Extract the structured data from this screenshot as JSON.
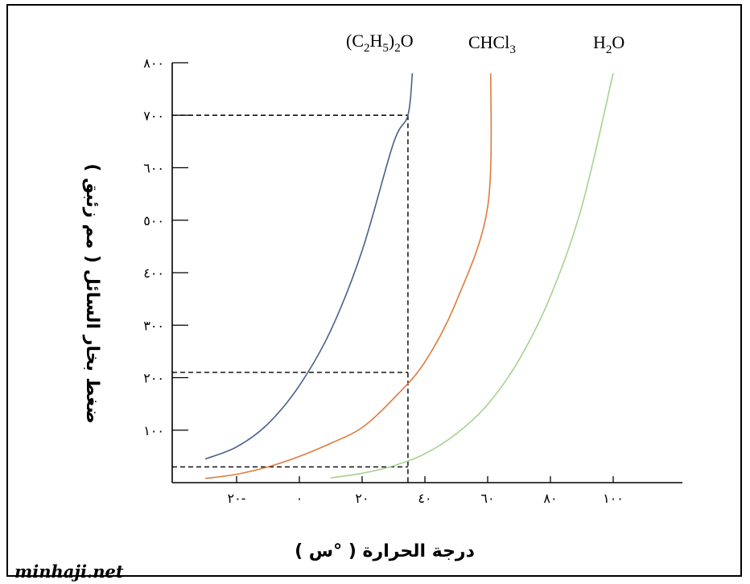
{
  "chart_data": {
    "type": "line",
    "title": "",
    "xlabel": "درجة الحرارة ( °س )",
    "ylabel": "ضغط بخار السائل ( مم زئبق )",
    "xlim": [
      -40,
      120
    ],
    "ylim": [
      0,
      800
    ],
    "x_ticks": [
      {
        "value": -20,
        "label": "٢٠-"
      },
      {
        "value": 0,
        "label": "٠"
      },
      {
        "value": 20,
        "label": "٢٠"
      },
      {
        "value": 40,
        "label": "٤٠"
      },
      {
        "value": 60,
        "label": "٦٠"
      },
      {
        "value": 80,
        "label": "٨٠"
      },
      {
        "value": 100,
        "label": "١٠٠"
      }
    ],
    "y_ticks": [
      {
        "value": 100,
        "label": "١٠٠"
      },
      {
        "value": 200,
        "label": "٢٠٠"
      },
      {
        "value": 300,
        "label": "٣٠٠"
      },
      {
        "value": 400,
        "label": "٤٠٠"
      },
      {
        "value": 500,
        "label": "٥٠٠"
      },
      {
        "value": 600,
        "label": "٦٠٠"
      },
      {
        "value": 700,
        "label": "٧٠٠"
      },
      {
        "value": 800,
        "label": "٨٠٠"
      }
    ],
    "grid": false,
    "series": [
      {
        "name": "(C2H5)2O",
        "color": "#4a5f8a",
        "x": [
          -30,
          -20,
          -10,
          0,
          10,
          20,
          30,
          34.6,
          36
        ],
        "y": [
          45,
          68,
          112,
          185,
          290,
          442,
          647,
          700,
          780
        ]
      },
      {
        "name": "CHCl3",
        "color": "#e07a3c",
        "x": [
          -30,
          -20,
          -10,
          0,
          10,
          20,
          30,
          40,
          50,
          60,
          61
        ],
        "y": [
          8,
          16,
          30,
          50,
          75,
          105,
          160,
          230,
          345,
          525,
          780
        ]
      },
      {
        "name": "H2O",
        "color": "#a6d28e",
        "x": [
          10,
          20,
          30,
          40,
          50,
          60,
          70,
          80,
          90,
          100
        ],
        "y": [
          9,
          18,
          32,
          55,
          93,
          149,
          234,
          355,
          526,
          780
        ]
      }
    ],
    "annotations": {
      "reference_temperature_x": 34.6,
      "dashed_levels_y": [
        30,
        210,
        700
      ]
    }
  },
  "series_labels": {
    "ether": {
      "base": "(C",
      "sub1": "2",
      "mid": "H",
      "sub2": "5",
      "close": ")",
      "sub3": "2",
      "end": "O"
    },
    "chloroform": {
      "base": "CHCl",
      "sub1": "3"
    },
    "water": {
      "base": "H",
      "sub1": "2",
      "end": "O"
    }
  },
  "watermark": "minhaji.net"
}
